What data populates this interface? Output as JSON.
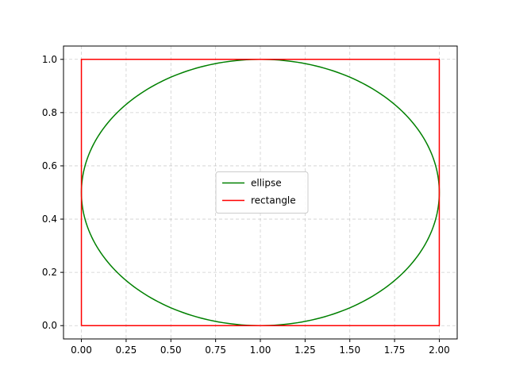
{
  "chart_data": {
    "type": "line",
    "title": "",
    "xlabel": "",
    "ylabel": "",
    "xlim": [
      -0.1,
      2.1
    ],
    "ylim": [
      -0.05,
      1.05
    ],
    "x_ticks": [
      "0.00",
      "0.25",
      "0.50",
      "0.75",
      "1.00",
      "1.25",
      "1.50",
      "1.75",
      "2.00"
    ],
    "y_ticks": [
      "0.0",
      "0.2",
      "0.4",
      "0.6",
      "0.8",
      "1.0"
    ],
    "grid": true,
    "legend_position": "center",
    "series": [
      {
        "name": "ellipse",
        "color": "#008000",
        "shape": "ellipse",
        "center": [
          1.0,
          0.5
        ],
        "semi_axes": [
          1.0,
          0.5
        ]
      },
      {
        "name": "rectangle",
        "color": "#ff0000",
        "shape": "polyline",
        "x": [
          0.0,
          2.0,
          2.0,
          0.0,
          0.0
        ],
        "y": [
          0.0,
          0.0,
          1.0,
          1.0,
          0.0
        ]
      }
    ]
  }
}
